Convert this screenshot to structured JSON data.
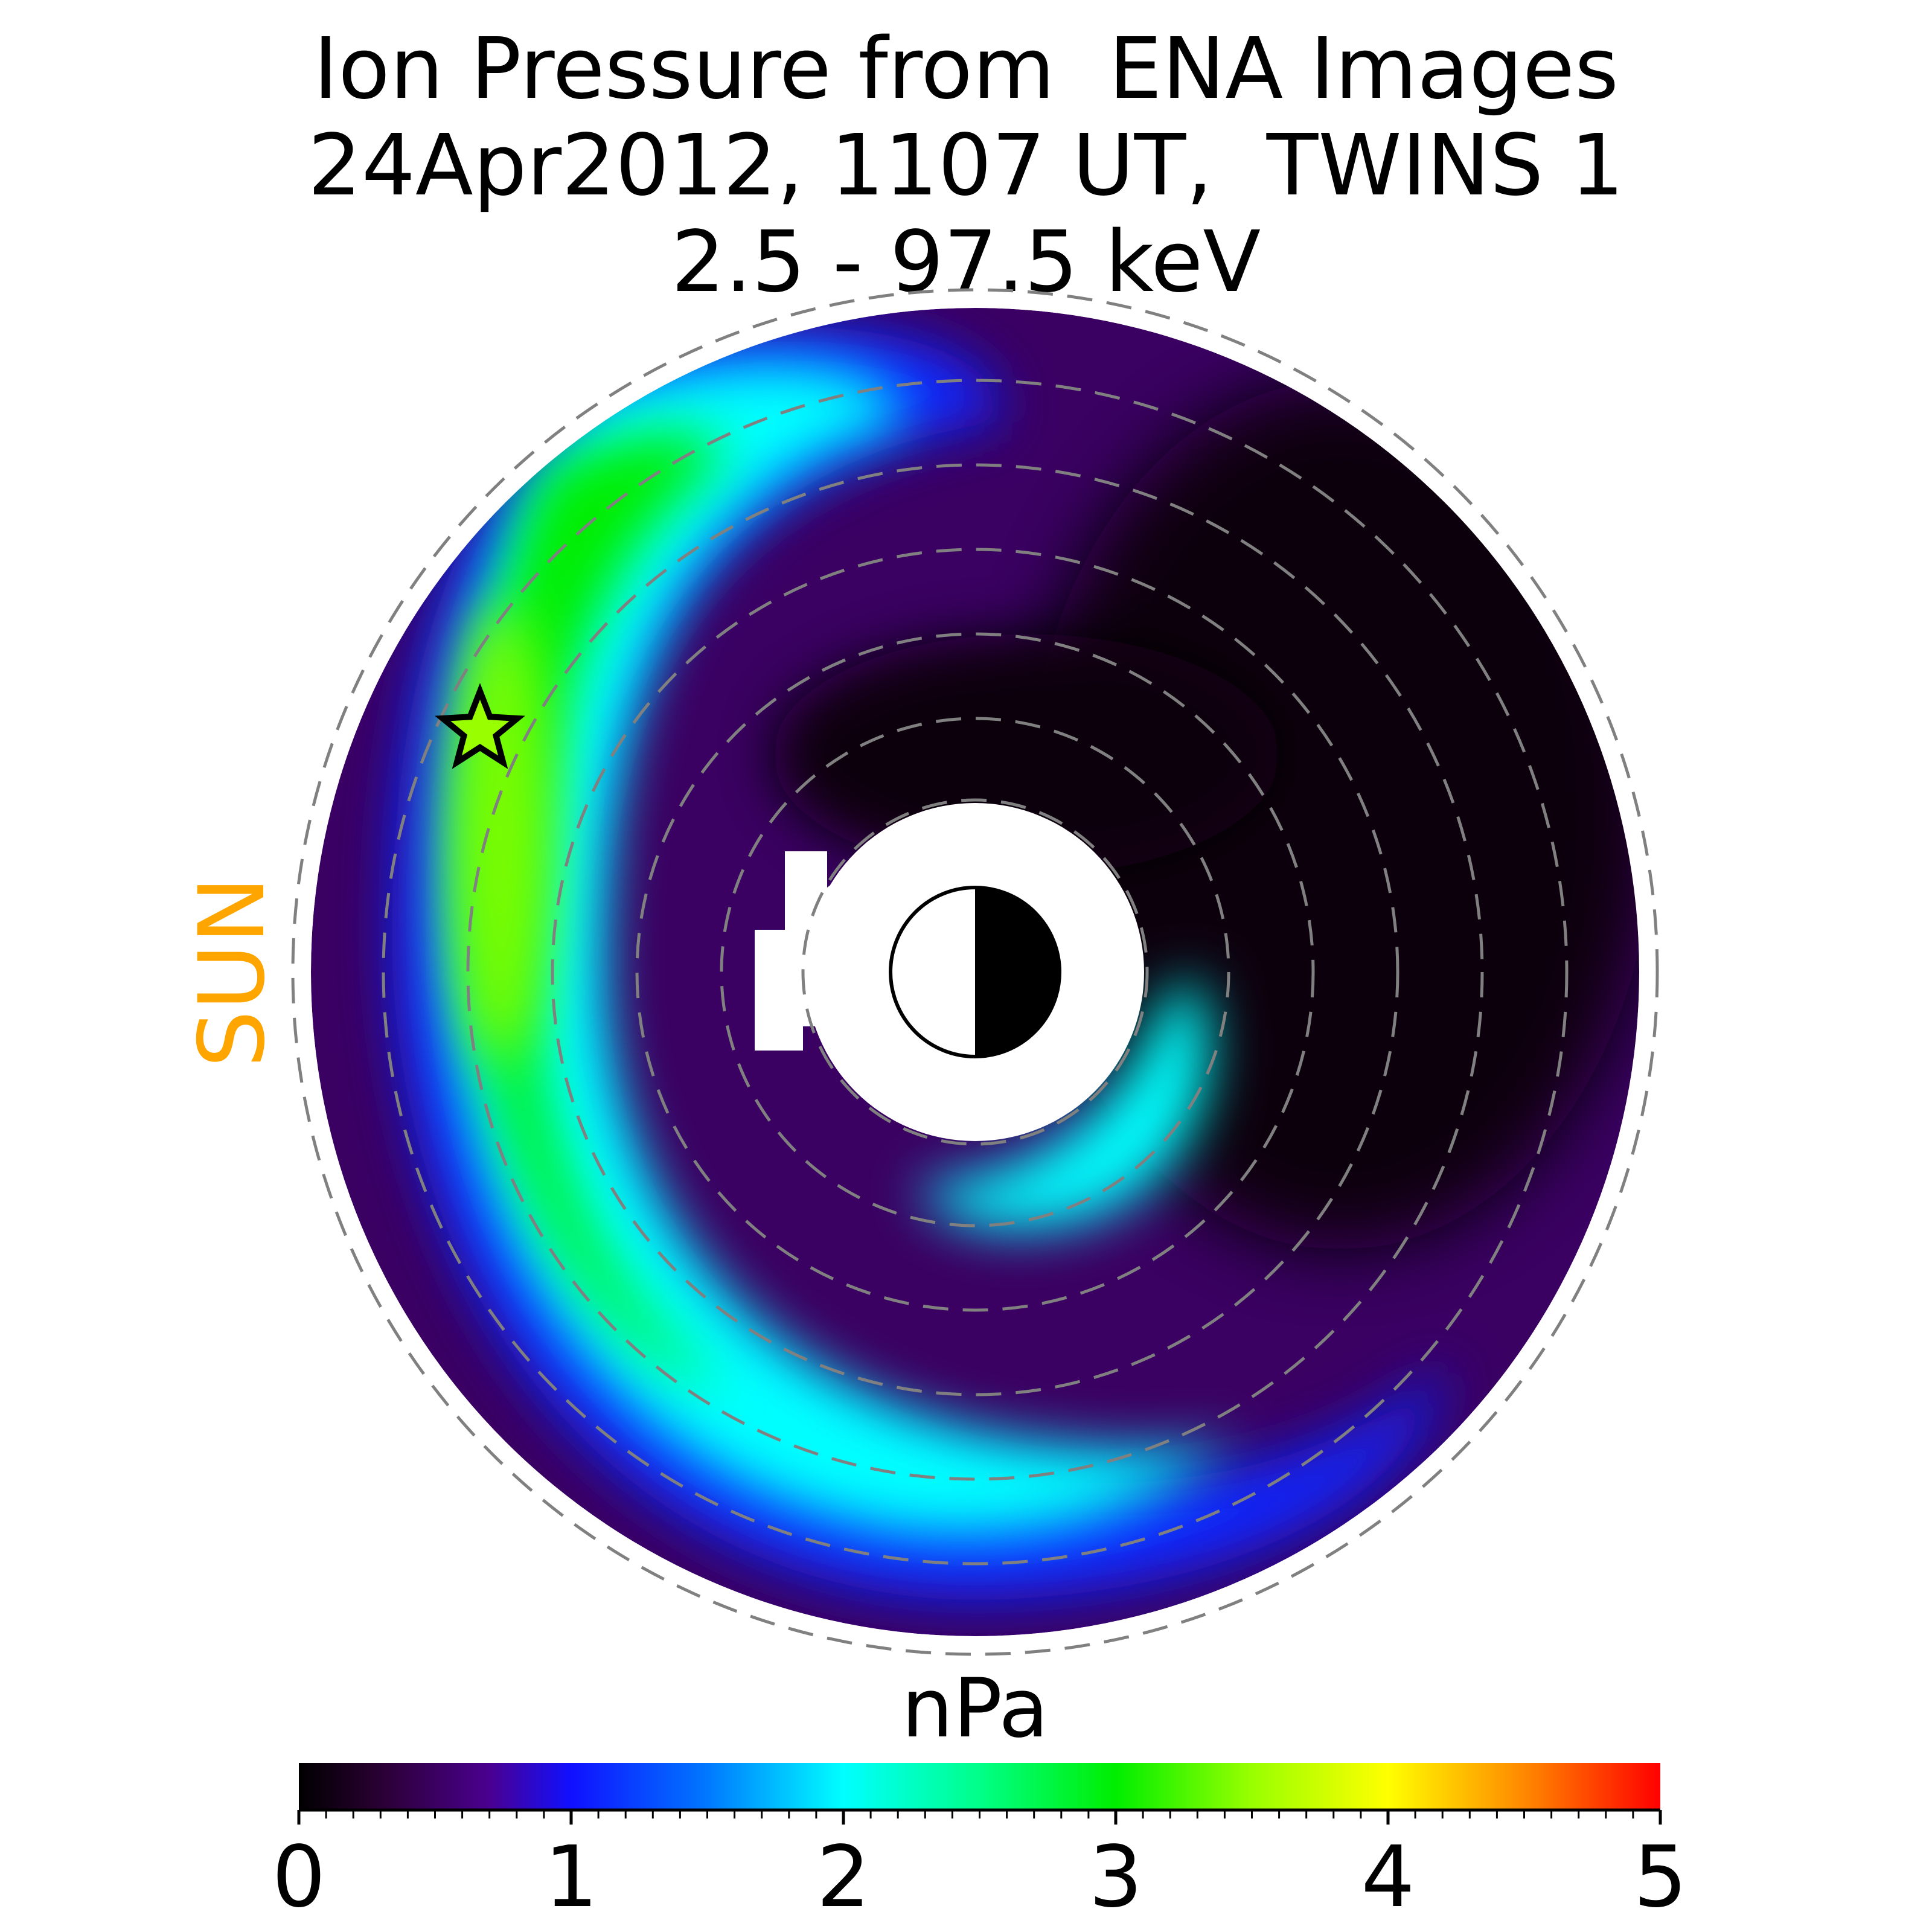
{
  "title": {
    "line1": "Ion Pressure from  ENA Images",
    "line2": "24Apr2012, 1107 UT,  TWINS 1",
    "line3": "2.5 - 97.5 keV"
  },
  "sun_label": "SUN",
  "colors": {
    "sun_label": "#FFA500",
    "grid_circles": "#808080"
  },
  "chart_data": {
    "type": "heatmap",
    "projection": "polar (equatorial plane, Sun to the left)",
    "colorbar": {
      "label": "nPa",
      "range": [
        0,
        5
      ],
      "ticks": [
        0,
        1,
        2,
        3,
        4,
        5
      ],
      "tick_labels": [
        "0",
        "1",
        "2",
        "3",
        "4",
        "5"
      ],
      "colormap": [
        {
          "v": 0.0,
          "c": "#000000"
        },
        {
          "v": 0.3,
          "c": "#2a0033"
        },
        {
          "v": 0.7,
          "c": "#4a0090"
        },
        {
          "v": 1.0,
          "c": "#1010ff"
        },
        {
          "v": 1.5,
          "c": "#0078ff"
        },
        {
          "v": 2.0,
          "c": "#00ffff"
        },
        {
          "v": 2.5,
          "c": "#00ff88"
        },
        {
          "v": 3.0,
          "c": "#00ee00"
        },
        {
          "v": 3.5,
          "c": "#99ff00"
        },
        {
          "v": 4.0,
          "c": "#ffff00"
        },
        {
          "v": 4.5,
          "c": "#ff8800"
        },
        {
          "v": 5.0,
          "c": "#ff0000"
        }
      ]
    },
    "features": [
      {
        "name": "dayside/dusk crescent",
        "peak_pressure_nPa": 3.4
      },
      {
        "name": "inner dawn band",
        "peak_pressure_nPa": 2.0
      },
      {
        "name": "nightside",
        "pressure_nPa": 0.2
      }
    ],
    "grid": "dashed concentric circles",
    "markers": [
      "star at peak pressure",
      "Earth symbol (day/night) at center"
    ]
  }
}
